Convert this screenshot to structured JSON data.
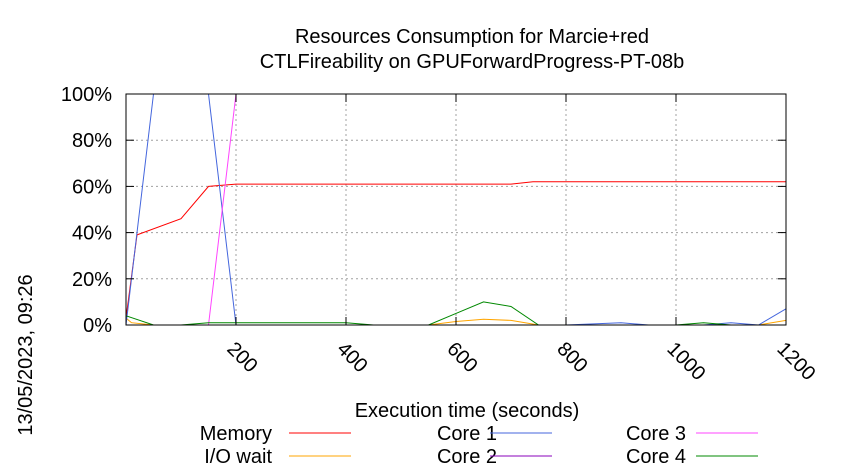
{
  "chart_data": {
    "type": "line",
    "title": "Resources Consumption for Marcie+red",
    "subtitle": "CTLFireability on GPUForwardProgress-PT-08b",
    "xlabel": "Execution time (seconds)",
    "ylabel": "",
    "xlim": [
      0,
      1200
    ],
    "ylim": [
      0,
      100
    ],
    "x_ticks": [
      200,
      400,
      600,
      800,
      1000,
      1200
    ],
    "x_tick_labels": [
      "200",
      "400",
      "600",
      "800",
      "1000",
      "1200"
    ],
    "y_ticks": [
      0,
      20,
      40,
      60,
      80,
      100
    ],
    "y_tick_labels": [
      "0%",
      "20%",
      "40%",
      "60%",
      "80%",
      "100%"
    ],
    "grid": true,
    "legend_position": "bottom",
    "timestamp": "13/05/2023, 09:26",
    "series": [
      {
        "name": "Memory",
        "color": "#ff0000",
        "points": [
          [
            0,
            3
          ],
          [
            20,
            39
          ],
          [
            100,
            46
          ],
          [
            150,
            60
          ],
          [
            200,
            61
          ],
          [
            300,
            61
          ],
          [
            400,
            61
          ],
          [
            500,
            61
          ],
          [
            600,
            61
          ],
          [
            700,
            61
          ],
          [
            740,
            62
          ],
          [
            800,
            62
          ],
          [
            900,
            62
          ],
          [
            1000,
            62
          ],
          [
            1100,
            62
          ],
          [
            1200,
            62
          ]
        ]
      },
      {
        "name": "I/O wait",
        "color": "#ffa500",
        "points": [
          [
            0,
            3
          ],
          [
            10,
            1
          ],
          [
            50,
            0
          ],
          [
            100,
            0
          ],
          [
            200,
            0
          ],
          [
            300,
            0
          ],
          [
            400,
            0
          ],
          [
            500,
            0
          ],
          [
            550,
            0
          ],
          [
            600,
            1.5
          ],
          [
            650,
            2.5
          ],
          [
            700,
            2
          ],
          [
            750,
            0
          ],
          [
            800,
            0
          ],
          [
            900,
            0
          ],
          [
            1000,
            0
          ],
          [
            1100,
            0
          ],
          [
            1150,
            0
          ],
          [
            1200,
            2
          ]
        ]
      },
      {
        "name": "Core 1",
        "color": "#4466dd",
        "points": [
          [
            0,
            0
          ],
          [
            50,
            100
          ],
          [
            150,
            100
          ],
          [
            200,
            0
          ],
          [
            300,
            0
          ],
          [
            400,
            0
          ],
          [
            500,
            0
          ],
          [
            600,
            0
          ],
          [
            700,
            0
          ],
          [
            800,
            0
          ],
          [
            900,
            1
          ],
          [
            950,
            0
          ],
          [
            1000,
            0
          ],
          [
            1050,
            0
          ],
          [
            1100,
            1
          ],
          [
            1150,
            0
          ],
          [
            1200,
            7
          ]
        ]
      },
      {
        "name": "Core 2",
        "color": "#8800bb",
        "points": [
          [
            0,
            0
          ],
          [
            100,
            0
          ],
          [
            200,
            0
          ],
          [
            300,
            0
          ],
          [
            400,
            0
          ],
          [
            500,
            0
          ],
          [
            600,
            0
          ],
          [
            700,
            0
          ],
          [
            800,
            0
          ],
          [
            900,
            0
          ],
          [
            1000,
            0
          ],
          [
            1100,
            0
          ],
          [
            1200,
            0
          ]
        ]
      },
      {
        "name": "Core 3",
        "color": "#ff44ff",
        "points": [
          [
            0,
            0
          ],
          [
            100,
            0
          ],
          [
            150,
            0
          ],
          [
            200,
            100
          ],
          [
            300,
            100
          ],
          [
            400,
            100
          ],
          [
            500,
            100
          ],
          [
            600,
            100
          ],
          [
            700,
            100
          ],
          [
            800,
            100
          ],
          [
            900,
            100
          ],
          [
            1000,
            100
          ],
          [
            1100,
            100
          ],
          [
            1200,
            100
          ]
        ]
      },
      {
        "name": "Core 4",
        "color": "#008800",
        "points": [
          [
            0,
            4
          ],
          [
            50,
            0
          ],
          [
            100,
            0
          ],
          [
            150,
            1
          ],
          [
            200,
            1
          ],
          [
            300,
            1
          ],
          [
            400,
            1
          ],
          [
            450,
            0
          ],
          [
            500,
            0
          ],
          [
            550,
            0
          ],
          [
            600,
            5
          ],
          [
            650,
            10
          ],
          [
            700,
            8
          ],
          [
            750,
            0
          ],
          [
            800,
            0
          ],
          [
            900,
            0
          ],
          [
            1000,
            0
          ],
          [
            1050,
            1
          ],
          [
            1100,
            0
          ],
          [
            1200,
            0
          ]
        ]
      }
    ]
  }
}
